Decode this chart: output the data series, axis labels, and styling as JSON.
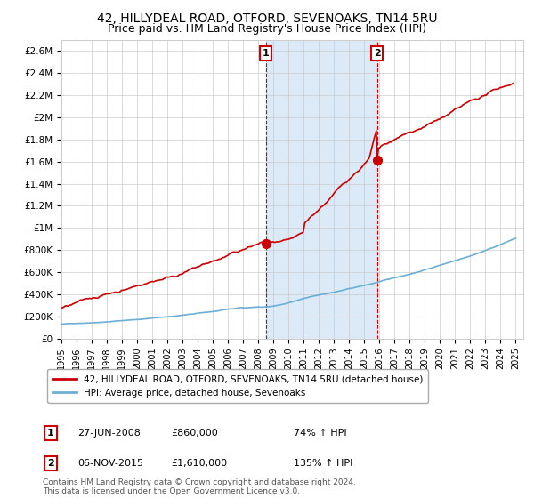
{
  "title": "42, HILLYDEAL ROAD, OTFORD, SEVENOAKS, TN14 5RU",
  "subtitle": "Price paid vs. HM Land Registry's House Price Index (HPI)",
  "ylim": [
    0,
    2700000
  ],
  "yticks": [
    0,
    200000,
    400000,
    600000,
    800000,
    1000000,
    1200000,
    1400000,
    1600000,
    1800000,
    2000000,
    2200000,
    2400000,
    2600000
  ],
  "ytick_labels": [
    "£0",
    "£200K",
    "£400K",
    "£600K",
    "£800K",
    "£1M",
    "£1.2M",
    "£1.4M",
    "£1.6M",
    "£1.8M",
    "£2M",
    "£2.2M",
    "£2.4M",
    "£2.6M"
  ],
  "hpi_color": "#6baed6",
  "price_color": "#cc0000",
  "sale1_date": 2008.49,
  "sale1_price": 860000,
  "sale2_date": 2015.84,
  "sale2_price": 1610000,
  "legend_price_label": "42, HILLYDEAL ROAD, OTFORD, SEVENOAKS, TN14 5RU (detached house)",
  "legend_hpi_label": "HPI: Average price, detached house, Sevenoaks",
  "note1_date": "27-JUN-2008",
  "note1_price": "£860,000",
  "note1_hpi": "74% ↑ HPI",
  "note2_date": "06-NOV-2015",
  "note2_price": "£1,610,000",
  "note2_hpi": "135% ↑ HPI",
  "footer": "Contains HM Land Registry data © Crown copyright and database right 2024.\nThis data is licensed under the Open Government Licence v3.0.",
  "bg_highlight_color": "#dce9f7",
  "vline_color": "#cc0000",
  "title_fontsize": 10,
  "subtitle_fontsize": 9
}
